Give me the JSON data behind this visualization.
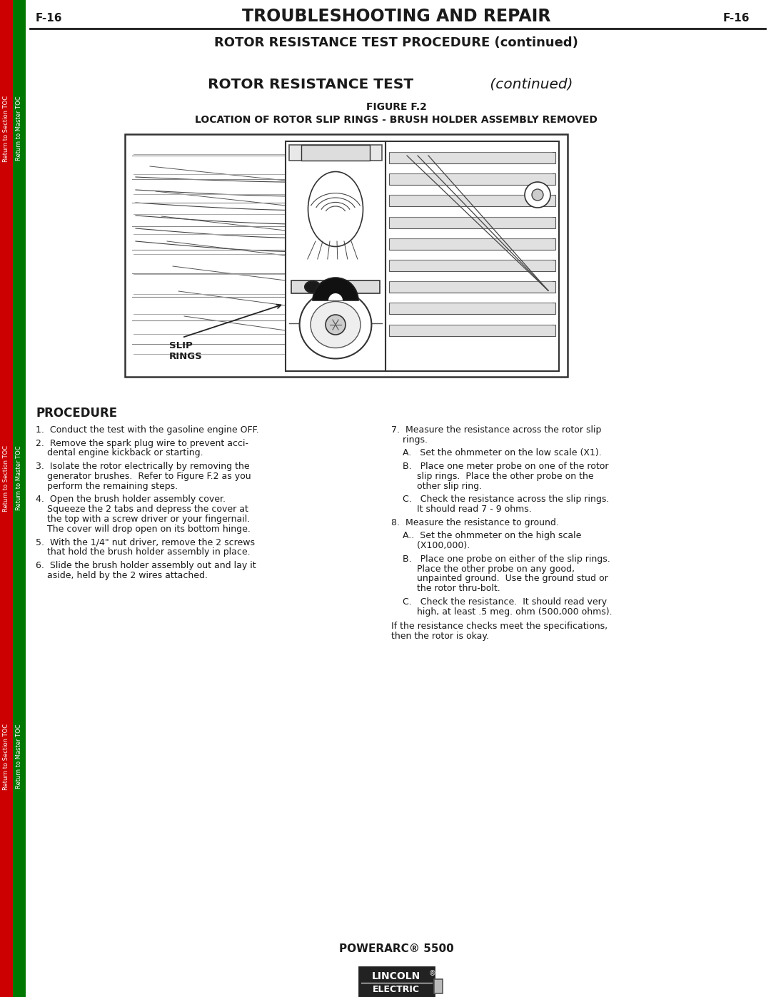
{
  "page_label": "F-16",
  "header_title": "TROUBLESHOOTING AND REPAIR",
  "section_title": "ROTOR RESISTANCE TEST PROCEDURE (continued)",
  "test_title_bold": "ROTOR RESISTANCE TEST",
  "test_title_italic": " (continued)",
  "figure_label": "FIGURE F.2",
  "figure_caption": "LOCATION OF ROTOR SLIP RINGS - BRUSH HOLDER ASSEMBLY REMOVED",
  "procedure_heading": "PROCEDURE",
  "left_col_lines": [
    "1.  Conduct the test with the gasoline engine OFF.",
    "",
    "2.  Remove the spark plug wire to prevent acci-",
    "    dental engine kickback or starting.",
    "",
    "3.  Isolate the rotor electrically by removing the",
    "    generator brushes.  Refer to Figure F.2 as you",
    "    perform the remaining steps.",
    "",
    "4.  Open the brush holder assembly cover.",
    "    Squeeze the 2 tabs and depress the cover at",
    "    the top with a screw driver or your fingernail.",
    "    The cover will drop open on its bottom hinge.",
    "",
    "5.  With the 1/4\" nut driver, remove the 2 screws",
    "    that hold the brush holder assembly in place.",
    "",
    "6.  Slide the brush holder assembly out and lay it",
    "    aside, held by the 2 wires attached."
  ],
  "right_col_lines": [
    "7.  Measure the resistance across the rotor slip",
    "    rings.",
    "",
    "    A.   Set the ohmmeter on the low scale (X1).",
    "",
    "    B.   Place one meter probe on one of the rotor",
    "         slip rings.  Place the other probe on the",
    "         other slip ring.",
    "",
    "    C.   Check the resistance across the slip rings.",
    "         It should read 7 - 9 ohms.",
    "",
    "8.  Measure the resistance to ground.",
    "",
    "    A..  Set the ohmmeter on the high scale",
    "         (X100,000).",
    "",
    "    B.   Place one probe on either of the slip rings.",
    "         Place the other probe on any good,",
    "         unpainted ground.  Use the ground stud or",
    "         the rotor thru-bolt.",
    "",
    "    C.   Check the resistance.  It should read very",
    "         high, at least .5 meg. ohm (500,000 ohms)."
  ],
  "closing_lines": [
    "If the resistance checks meet the specifications,",
    "then the rotor is okay."
  ],
  "footer_product": "POWERARC® 5500",
  "sidebar_red_text": "Return to Section TOC",
  "sidebar_green_text": "Return to Master TOC",
  "bg_color": "#ffffff",
  "text_color": "#1a1a1a",
  "sidebar_red_color": "#cc0000",
  "sidebar_green_color": "#007700"
}
